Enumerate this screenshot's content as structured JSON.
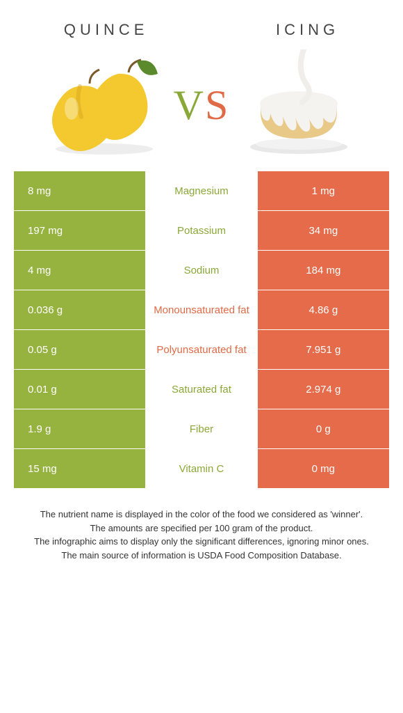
{
  "colors": {
    "left_bg": "#96b23f",
    "right_bg": "#e56b4a",
    "left_text": "#8aa838",
    "right_text": "#e06a46",
    "quince_body": "#f3c92f",
    "quince_shadow": "#d9a81e",
    "leaf": "#5a8a2c",
    "cake_body": "#e8c988",
    "cake_icing": "#f5f3f0",
    "cake_plate": "#e8e8e8"
  },
  "header": {
    "left": "Quince",
    "right": "Icing"
  },
  "vs": {
    "v": "V",
    "s": "S"
  },
  "rows": [
    {
      "left": "8 mg",
      "mid": "Magnesium",
      "right": "1 mg",
      "winner": "left"
    },
    {
      "left": "197 mg",
      "mid": "Potassium",
      "right": "34 mg",
      "winner": "left"
    },
    {
      "left": "4 mg",
      "mid": "Sodium",
      "right": "184 mg",
      "winner": "left"
    },
    {
      "left": "0.036 g",
      "mid": "Monounsaturated fat",
      "right": "4.86 g",
      "winner": "right"
    },
    {
      "left": "0.05 g",
      "mid": "Polyunsaturated fat",
      "right": "7.951 g",
      "winner": "right"
    },
    {
      "left": "0.01 g",
      "mid": "Saturated fat",
      "right": "2.974 g",
      "winner": "left"
    },
    {
      "left": "1.9 g",
      "mid": "Fiber",
      "right": "0 g",
      "winner": "left"
    },
    {
      "left": "15 mg",
      "mid": "Vitamin C",
      "right": "0 mg",
      "winner": "left"
    }
  ],
  "footer": {
    "l1": "The nutrient name is displayed in the color of the food we considered as 'winner'.",
    "l2": "The amounts are specified per 100 gram of the product.",
    "l3": "The infographic aims to display only the significant differences, ignoring minor ones.",
    "l4": "The main source of information is USDA Food Composition Database."
  }
}
